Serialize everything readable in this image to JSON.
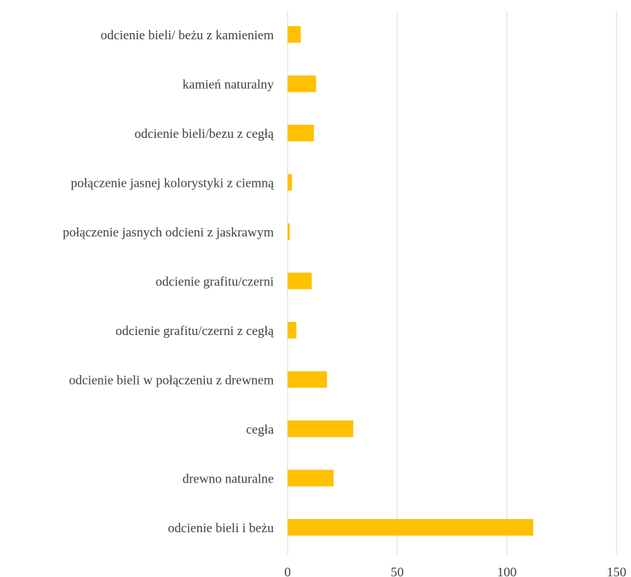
{
  "chart_data": {
    "type": "bar",
    "orientation": "horizontal",
    "title": "",
    "xlabel": "",
    "ylabel": "",
    "categories": [
      "odcienie bieli/ beżu z kamieniem",
      "kamień naturalny",
      "odcienie bieli/bezu z cegłą",
      "połączenie jasnej kolorystyki z ciemną",
      "połączenie jasnych odcieni z jaskrawym",
      "odcienie grafitu/czerni",
      "odcienie grafitu/czerni z cegłą",
      "odcienie bieli w połączeniu z drewnem",
      "cegła",
      "drewno naturalne",
      "odcienie bieli i beżu"
    ],
    "values": [
      6,
      13,
      12,
      2,
      1,
      11,
      4,
      18,
      30,
      21,
      112
    ],
    "xlim": [
      0,
      150
    ],
    "x_ticks": [
      "0",
      "50",
      "100",
      "150"
    ],
    "grid": "vertical",
    "legend": "none",
    "colors": {
      "bar": "#FFC000",
      "grid": "#d9d9d9",
      "text": "#404040"
    }
  }
}
